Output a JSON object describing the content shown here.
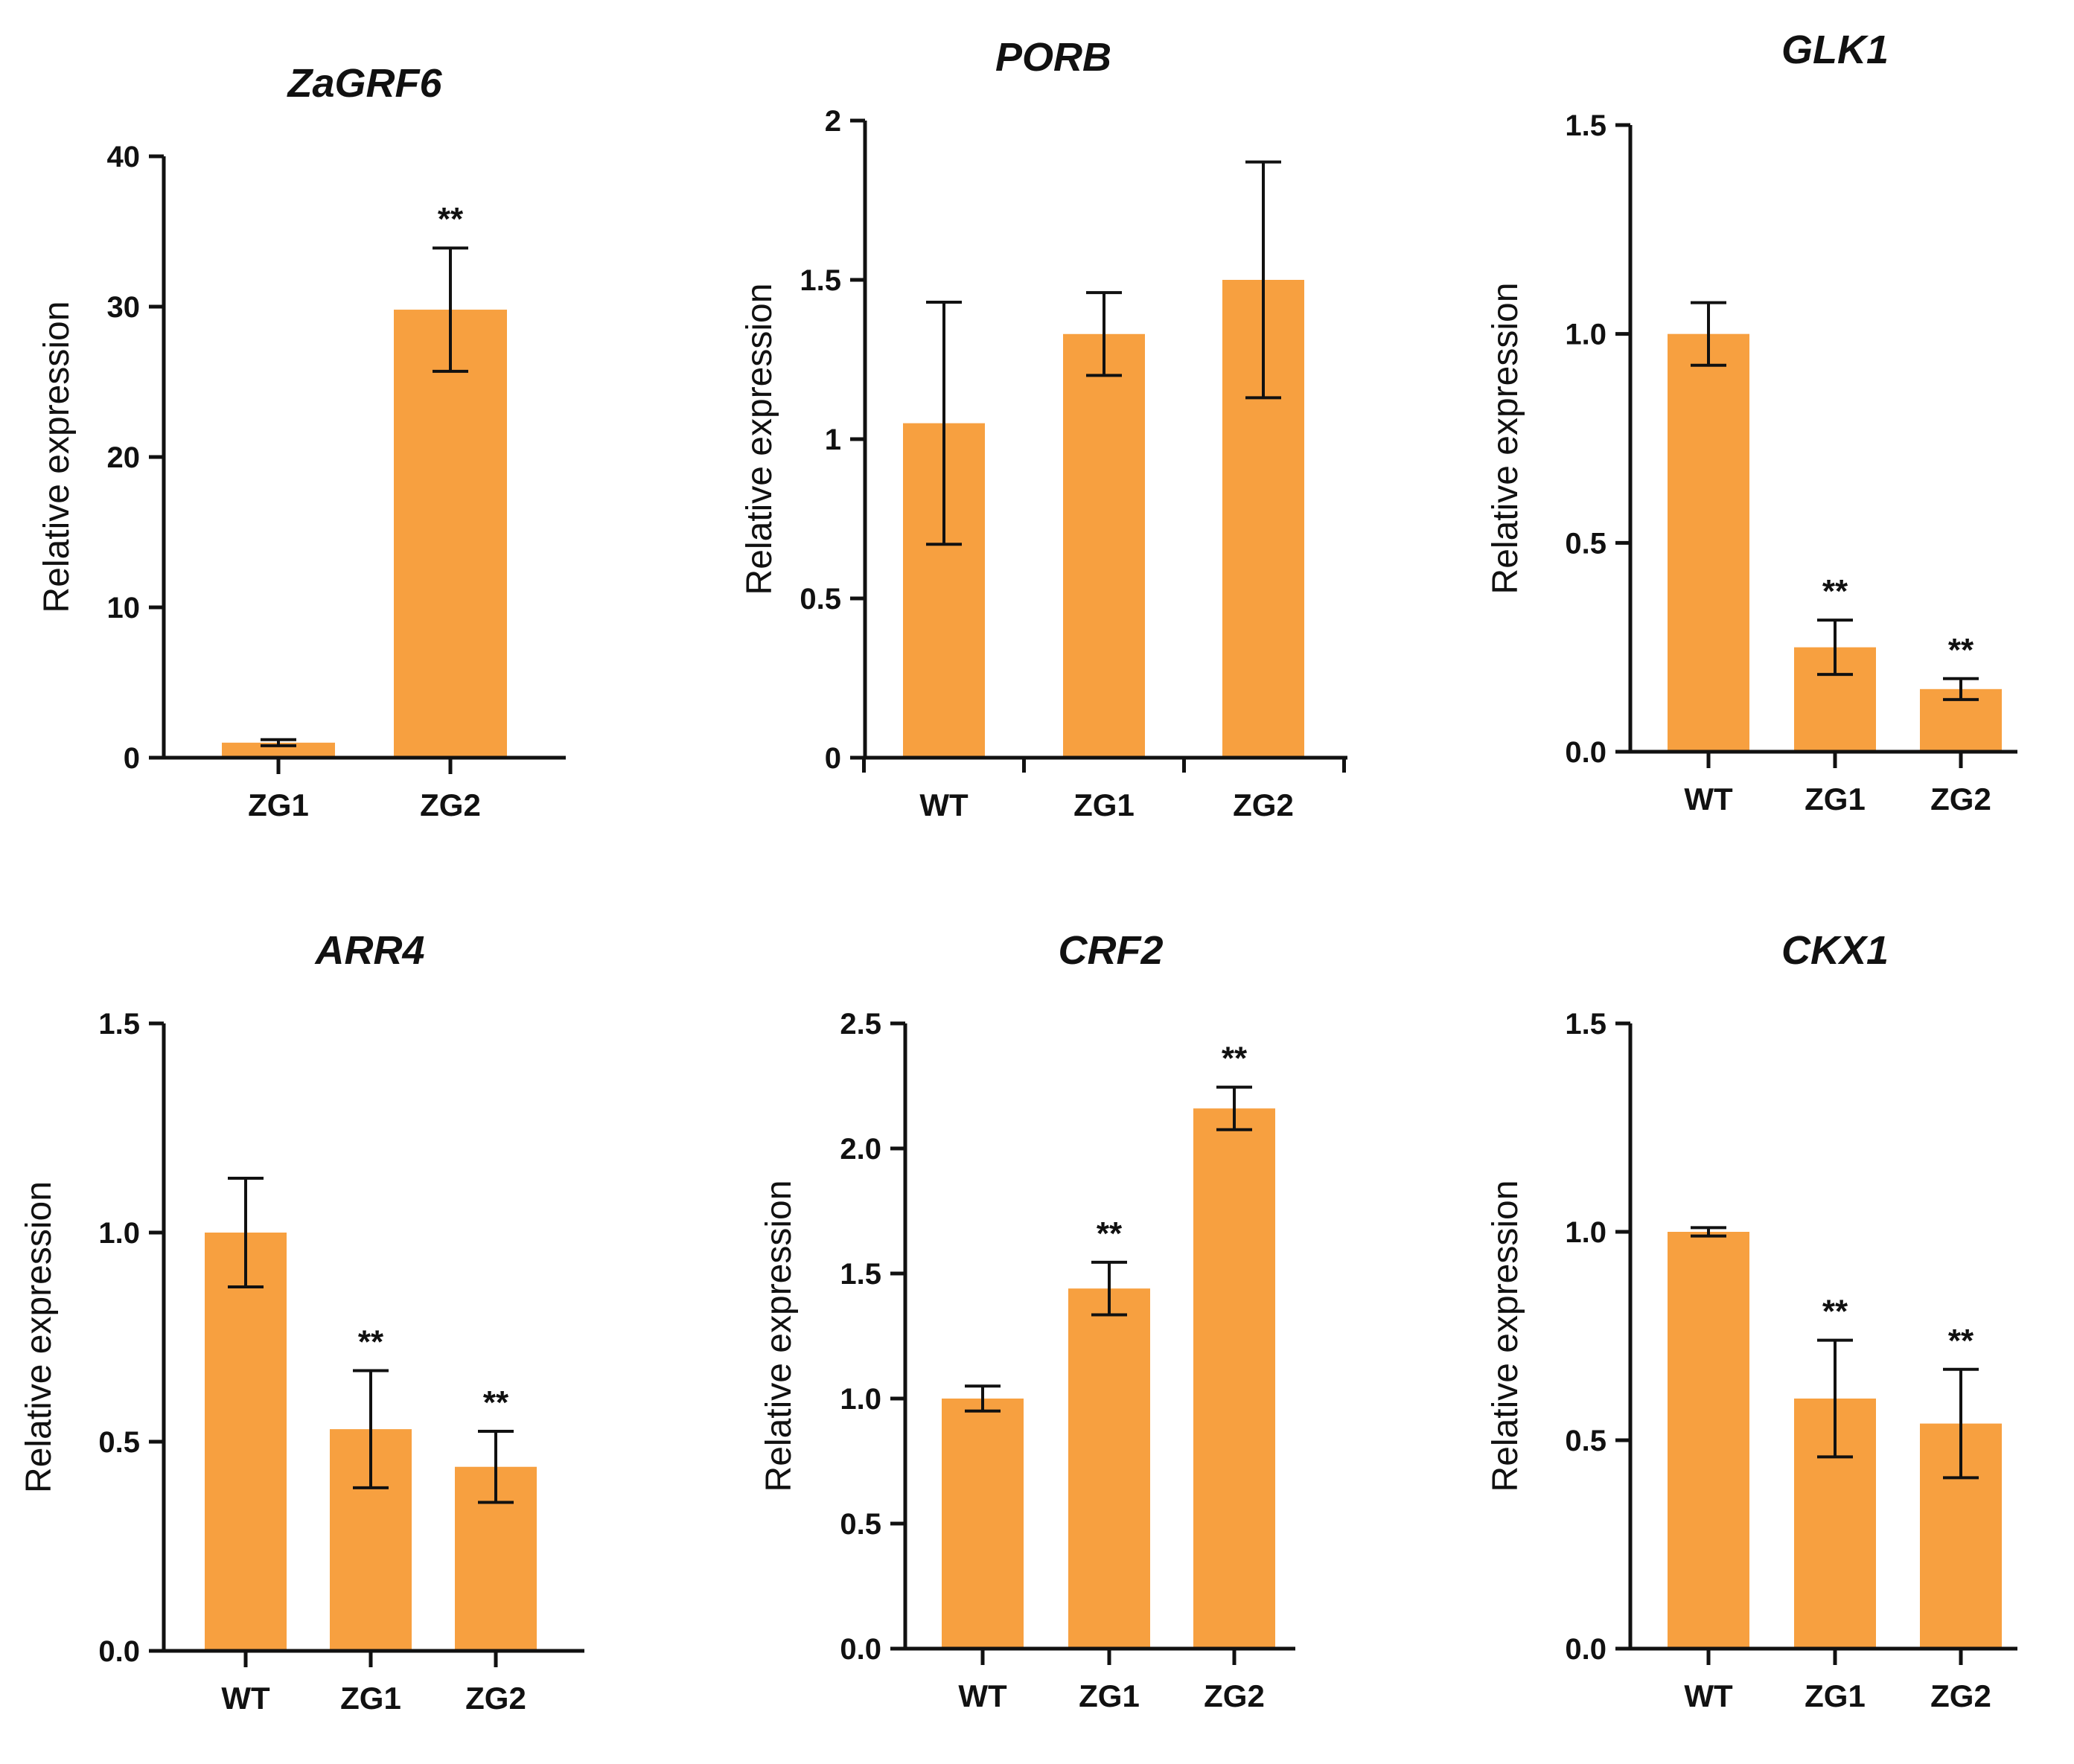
{
  "figure": {
    "bar_color": "#F7A040",
    "text_color": "#111111"
  },
  "chart_data": [
    {
      "type": "bar",
      "title": "ZaGRF6",
      "xlabel": "",
      "ylabel": "Relative expression",
      "ylim": [
        0,
        40
      ],
      "yticks": [
        0,
        10,
        20,
        30,
        40
      ],
      "ytick_labels": [
        "0",
        "10",
        "20",
        "30",
        "40"
      ],
      "categories": [
        "ZG1",
        "ZG2"
      ],
      "values": [
        1.0,
        29.8
      ],
      "errors": [
        0.2,
        4.1
      ],
      "significance": [
        "",
        "**"
      ],
      "tick_between": false
    },
    {
      "type": "bar",
      "title": "PORB",
      "xlabel": "",
      "ylabel": "Relative expression",
      "ylim": [
        0,
        2
      ],
      "yticks": [
        0,
        0.5,
        1,
        1.5,
        2
      ],
      "ytick_labels": [
        "0",
        "0.5",
        "1",
        "1.5",
        "2"
      ],
      "categories": [
        "WT",
        "ZG1",
        "ZG2"
      ],
      "values": [
        1.05,
        1.33,
        1.5
      ],
      "errors": [
        0.38,
        0.13,
        0.37
      ],
      "significance": [
        "",
        "",
        ""
      ],
      "tick_between": true
    },
    {
      "type": "bar",
      "title": "GLK1",
      "xlabel": "",
      "ylabel": "Relative expression",
      "ylim": [
        0,
        1.5
      ],
      "yticks": [
        0,
        0.5,
        1.0,
        1.5
      ],
      "ytick_labels": [
        "0.0",
        "0.5",
        "1.0",
        "1.5"
      ],
      "categories": [
        "WT",
        "ZG1",
        "ZG2"
      ],
      "values": [
        1.0,
        0.25,
        0.15
      ],
      "errors": [
        0.075,
        0.065,
        0.025
      ],
      "significance": [
        "",
        "**",
        "**"
      ],
      "tick_between": false
    },
    {
      "type": "bar",
      "title": "ARR4",
      "xlabel": "",
      "ylabel": "Relative expression",
      "ylim": [
        0,
        1.5
      ],
      "yticks": [
        0,
        0.5,
        1.0,
        1.5
      ],
      "ytick_labels": [
        "0.0",
        "0.5",
        "1.0",
        "1.5"
      ],
      "categories": [
        "WT",
        "ZG1",
        "ZG2"
      ],
      "values": [
        1.0,
        0.53,
        0.44
      ],
      "errors": [
        0.13,
        0.14,
        0.085
      ],
      "significance": [
        "",
        "**",
        "**"
      ],
      "tick_between": false
    },
    {
      "type": "bar",
      "title": "CRF2",
      "xlabel": "",
      "ylabel": "Relative expression",
      "ylim": [
        0,
        2.5
      ],
      "yticks": [
        0,
        0.5,
        1.0,
        1.5,
        2.0,
        2.5
      ],
      "ytick_labels": [
        "0.0",
        "0.5",
        "1.0",
        "1.5",
        "2.0",
        "2.5"
      ],
      "categories": [
        "WT",
        "ZG1",
        "ZG2"
      ],
      "values": [
        1.0,
        1.44,
        2.16
      ],
      "errors": [
        0.05,
        0.105,
        0.085
      ],
      "significance": [
        "",
        "**",
        "**"
      ],
      "tick_between": false
    },
    {
      "type": "bar",
      "title": "CKX1",
      "xlabel": "",
      "ylabel": "Relative expression",
      "ylim": [
        0,
        1.5
      ],
      "yticks": [
        0,
        0.5,
        1.0,
        1.5
      ],
      "ytick_labels": [
        "0.0",
        "0.5",
        "1.0",
        "1.5"
      ],
      "categories": [
        "WT",
        "ZG1",
        "ZG2"
      ],
      "values": [
        1.0,
        0.6,
        0.54
      ],
      "errors": [
        0.01,
        0.14,
        0.13
      ],
      "significance": [
        "",
        "**",
        "**"
      ],
      "tick_between": false
    }
  ]
}
